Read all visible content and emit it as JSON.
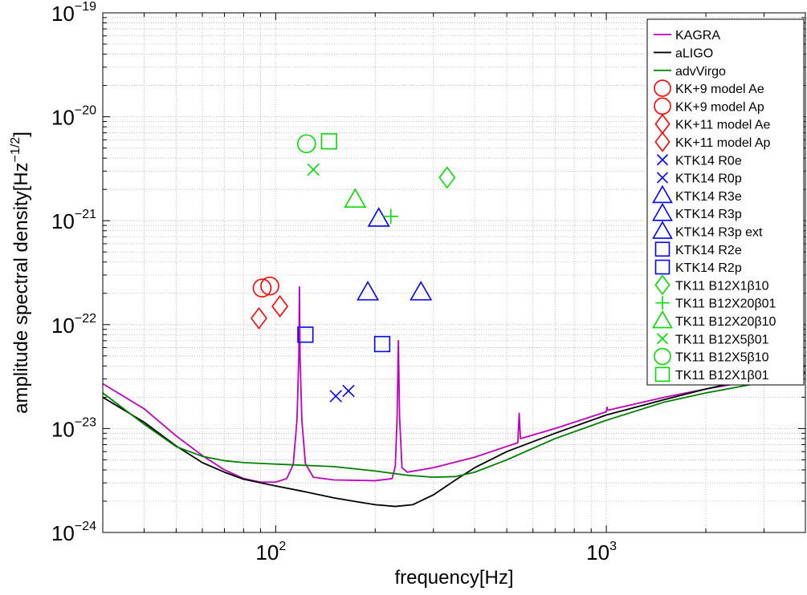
{
  "chart_data": {
    "type": "line",
    "xlabel": "frequency[Hz]",
    "ylabel_main": "amplitude spectral density[Hz",
    "ylabel_sup": "−1/2",
    "ylabel_close": "]",
    "xscale": "log",
    "yscale": "log",
    "xlim": [
      30,
      4000
    ],
    "ylim": [
      1e-24,
      1e-19
    ],
    "grid": true,
    "legend_position": "top-right",
    "x_ticks": [
      {
        "base": "10",
        "exp": "2",
        "value": 100
      },
      {
        "base": "10",
        "exp": "3",
        "value": 1000
      }
    ],
    "y_ticks": [
      {
        "base": "10",
        "exp": "−24",
        "value": 1e-24
      },
      {
        "base": "10",
        "exp": "−23",
        "value": 1e-23
      },
      {
        "base": "10",
        "exp": "−22",
        "value": 1e-22
      },
      {
        "base": "10",
        "exp": "−21",
        "value": 1e-21
      },
      {
        "base": "10",
        "exp": "−20",
        "value": 1e-20
      },
      {
        "base": "10",
        "exp": "−19",
        "value": 1e-19
      }
    ],
    "curves": [
      {
        "name": "KAGRA",
        "color": "#bf00bf",
        "points": [
          [
            30,
            2.7e-23
          ],
          [
            40,
            1.55e-23
          ],
          [
            50,
            8.5e-24
          ],
          [
            60,
            5.5e-24
          ],
          [
            70,
            4e-24
          ],
          [
            80,
            3.3e-24
          ],
          [
            90,
            3.05e-24
          ],
          [
            100,
            3.05e-24
          ],
          [
            108,
            3.3e-24
          ],
          [
            113,
            4.5e-24
          ],
          [
            116,
            1.2e-23
          ],
          [
            117.5,
            5e-23
          ],
          [
            118,
            2.3e-22
          ],
          [
            118.5,
            5e-23
          ],
          [
            120,
            1.2e-23
          ],
          [
            123,
            4.6e-24
          ],
          [
            130,
            3.4e-24
          ],
          [
            150,
            3.2e-24
          ],
          [
            200,
            3.15e-24
          ],
          [
            225,
            3.3e-24
          ],
          [
            230,
            4.3e-24
          ],
          [
            233,
            1.3e-23
          ],
          [
            235,
            7e-23
          ],
          [
            237,
            1.3e-23
          ],
          [
            241,
            4.2e-24
          ],
          [
            250,
            3.8e-24
          ],
          [
            300,
            4.2e-24
          ],
          [
            400,
            5.3e-24
          ],
          [
            540,
            7.3e-24
          ],
          [
            545,
            1.4e-23
          ],
          [
            550,
            8e-24
          ],
          [
            700,
            1e-23
          ],
          [
            1000,
            1.45e-23
          ],
          [
            1005,
            1.6e-23
          ],
          [
            1010,
            1.5e-23
          ],
          [
            1500,
            2e-23
          ],
          [
            2000,
            2.4e-23
          ],
          [
            3000,
            3e-23
          ],
          [
            4000,
            3.5e-23
          ]
        ]
      },
      {
        "name": "aLIGO",
        "color": "#000000",
        "points": [
          [
            30,
            2e-23
          ],
          [
            40,
            1.15e-23
          ],
          [
            50,
            6.8e-24
          ],
          [
            60,
            4.7e-24
          ],
          [
            70,
            3.8e-24
          ],
          [
            80,
            3.25e-24
          ],
          [
            100,
            2.8e-24
          ],
          [
            120,
            2.5e-24
          ],
          [
            150,
            2.15e-24
          ],
          [
            180,
            1.95e-24
          ],
          [
            200,
            1.85e-24
          ],
          [
            230,
            1.78e-24
          ],
          [
            260,
            1.85e-24
          ],
          [
            300,
            2.3e-24
          ],
          [
            350,
            3.2e-24
          ],
          [
            400,
            4.2e-24
          ],
          [
            500,
            6e-24
          ],
          [
            700,
            9e-24
          ],
          [
            1000,
            1.35e-23
          ],
          [
            1500,
            1.9e-23
          ],
          [
            2000,
            2.4e-23
          ],
          [
            3000,
            3.2e-23
          ],
          [
            4000,
            4e-23
          ]
        ]
      },
      {
        "name": "advVirgo",
        "color": "#007f00",
        "points": [
          [
            30,
            2.2e-23
          ],
          [
            40,
            1.1e-23
          ],
          [
            50,
            6.7e-24
          ],
          [
            60,
            5.4e-24
          ],
          [
            70,
            4.9e-24
          ],
          [
            80,
            4.7e-24
          ],
          [
            100,
            4.55e-24
          ],
          [
            150,
            4.3e-24
          ],
          [
            200,
            3.9e-24
          ],
          [
            250,
            3.55e-24
          ],
          [
            300,
            3.4e-24
          ],
          [
            350,
            3.45e-24
          ],
          [
            400,
            3.8e-24
          ],
          [
            500,
            5e-24
          ],
          [
            700,
            8e-24
          ],
          [
            1000,
            1.2e-23
          ],
          [
            1500,
            1.8e-23
          ],
          [
            2000,
            2.2e-23
          ],
          [
            3000,
            2.8e-23
          ],
          [
            4000,
            3.4e-23
          ]
        ]
      }
    ],
    "markers": [
      {
        "name": "KK+9 model Ae",
        "marker": "circle",
        "color": "#ff0000",
        "points": [
          [
            91,
            2.25e-22
          ]
        ]
      },
      {
        "name": "KK+9 model Ap",
        "marker": "circle",
        "color": "#ff0000",
        "points": [
          [
            96,
            2.35e-22
          ]
        ]
      },
      {
        "name": "KK+11 model Ae",
        "marker": "diamond",
        "color": "#ff0000",
        "points": [
          [
            89,
            1.15e-22
          ]
        ]
      },
      {
        "name": "KK+11 model Ap",
        "marker": "diamond",
        "color": "#ff0000",
        "points": [
          [
            103,
            1.5e-22
          ]
        ]
      },
      {
        "name": "KTK14 R0e",
        "marker": "x",
        "color": "#0000ff",
        "points": [
          [
            152,
            2.05e-23
          ]
        ]
      },
      {
        "name": "KTK14 R0p",
        "marker": "x",
        "color": "#0000ff",
        "points": [
          [
            166,
            2.3e-23
          ]
        ]
      },
      {
        "name": "KTK14 R3e",
        "marker": "triangle",
        "color": "#0000ff",
        "points": [
          [
            205,
            1.05e-21
          ]
        ]
      },
      {
        "name": "KTK14 R3p",
        "marker": "triangle",
        "color": "#0000ff",
        "points": [
          [
            190,
            2.05e-22
          ]
        ]
      },
      {
        "name": "KTK14 R3p ext",
        "marker": "triangle",
        "color": "#0000ff",
        "points": [
          [
            275,
            2.05e-22
          ]
        ]
      },
      {
        "name": "KTK14 R2e",
        "marker": "square",
        "color": "#0000ff",
        "points": [
          [
            123,
            8e-23
          ]
        ]
      },
      {
        "name": "KTK14 R2p",
        "marker": "square",
        "color": "#0000ff",
        "points": [
          [
            210,
            6.5e-23
          ]
        ]
      },
      {
        "name": "TK11 B12X1β10",
        "marker": "diamond",
        "color": "#00dd00",
        "points": [
          [
            330,
            2.6e-21
          ]
        ]
      },
      {
        "name": "TK11 B12X20β01",
        "marker": "plus",
        "color": "#00dd00",
        "points": [
          [
            223,
            1.1e-21
          ]
        ]
      },
      {
        "name": "TK11 B12X20β10",
        "marker": "triangle",
        "color": "#00dd00",
        "points": [
          [
            174,
            1.6e-21
          ]
        ]
      },
      {
        "name": "TK11 B12X5β01",
        "marker": "x",
        "color": "#00dd00",
        "points": [
          [
            130,
            3.1e-21
          ]
        ]
      },
      {
        "name": "TK11 B12X5β10",
        "marker": "circle",
        "color": "#00dd00",
        "points": [
          [
            124,
            5.5e-21
          ]
        ]
      },
      {
        "name": "TK11 B12X1β01",
        "marker": "square",
        "color": "#00dd00",
        "points": [
          [
            145,
            5.8e-21
          ]
        ]
      }
    ]
  }
}
